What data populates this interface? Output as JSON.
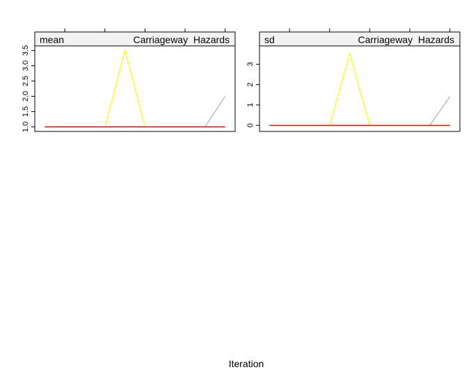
{
  "chart_data": [
    {
      "type": "line",
      "panel": "mean",
      "strip_label": "mean",
      "strip_variable": "Carriageway_Hazards",
      "strip_variable_display": "Carriageway  Hazards",
      "xlabel": "Iteration",
      "ylabel": "",
      "x": [
        1,
        2,
        3,
        4,
        5,
        6,
        7,
        8,
        9,
        10
      ],
      "series": [
        {
          "color": "#cc0000",
          "values": [
            1,
            1,
            1,
            1,
            1,
            1,
            1,
            1,
            1,
            1
          ]
        },
        {
          "color": "#ffff00",
          "values": [
            1,
            1,
            1,
            1,
            3.5,
            1,
            1,
            1,
            1,
            1
          ]
        },
        {
          "color": "#b0b0b0",
          "values": [
            1,
            1,
            1,
            1,
            1,
            1,
            1,
            1,
            1,
            2
          ]
        }
      ],
      "xlim": [
        0.5,
        10.5
      ],
      "ylim": [
        0.85,
        3.65
      ],
      "y_ticks": [
        1.0,
        1.5,
        2.0,
        2.5,
        3.0,
        3.5
      ],
      "y_tick_labels": [
        "1.0",
        "1.5",
        "2.0",
        "2.5",
        "3.0",
        "3.5"
      ],
      "x_ticks_top": [
        2,
        4,
        6,
        8,
        10
      ],
      "grid": false
    },
    {
      "type": "line",
      "panel": "sd",
      "strip_label": "sd",
      "strip_variable": "Carriageway_Hazards",
      "strip_variable_display": "Carriageway  Hazards",
      "xlabel": "Iteration",
      "ylabel": "",
      "x": [
        1,
        2,
        3,
        4,
        5,
        6,
        7,
        8,
        9,
        10
      ],
      "series": [
        {
          "color": "#cc0000",
          "values": [
            0,
            0,
            0,
            0,
            0,
            0,
            0,
            0,
            0,
            0
          ]
        },
        {
          "color": "#ffff00",
          "values": [
            0,
            0,
            0,
            0,
            3.5,
            0,
            0,
            0,
            0,
            0
          ]
        },
        {
          "color": "#b0b0b0",
          "values": [
            0,
            0,
            0,
            0,
            0,
            0,
            0,
            0,
            0,
            1.41
          ]
        }
      ],
      "xlim": [
        0.5,
        10.5
      ],
      "ylim": [
        -0.3,
        3.9
      ],
      "y_ticks": [
        0,
        1,
        2,
        3
      ],
      "y_tick_labels": [
        "0",
        "1",
        "2",
        "3"
      ],
      "x_ticks_top": [
        2,
        4,
        6,
        8,
        10
      ],
      "grid": false
    }
  ],
  "figure": {
    "xlabel": "Iteration",
    "background": "#ffffff",
    "strip_background": "#f2f2f2",
    "axis_color": "#000000"
  }
}
